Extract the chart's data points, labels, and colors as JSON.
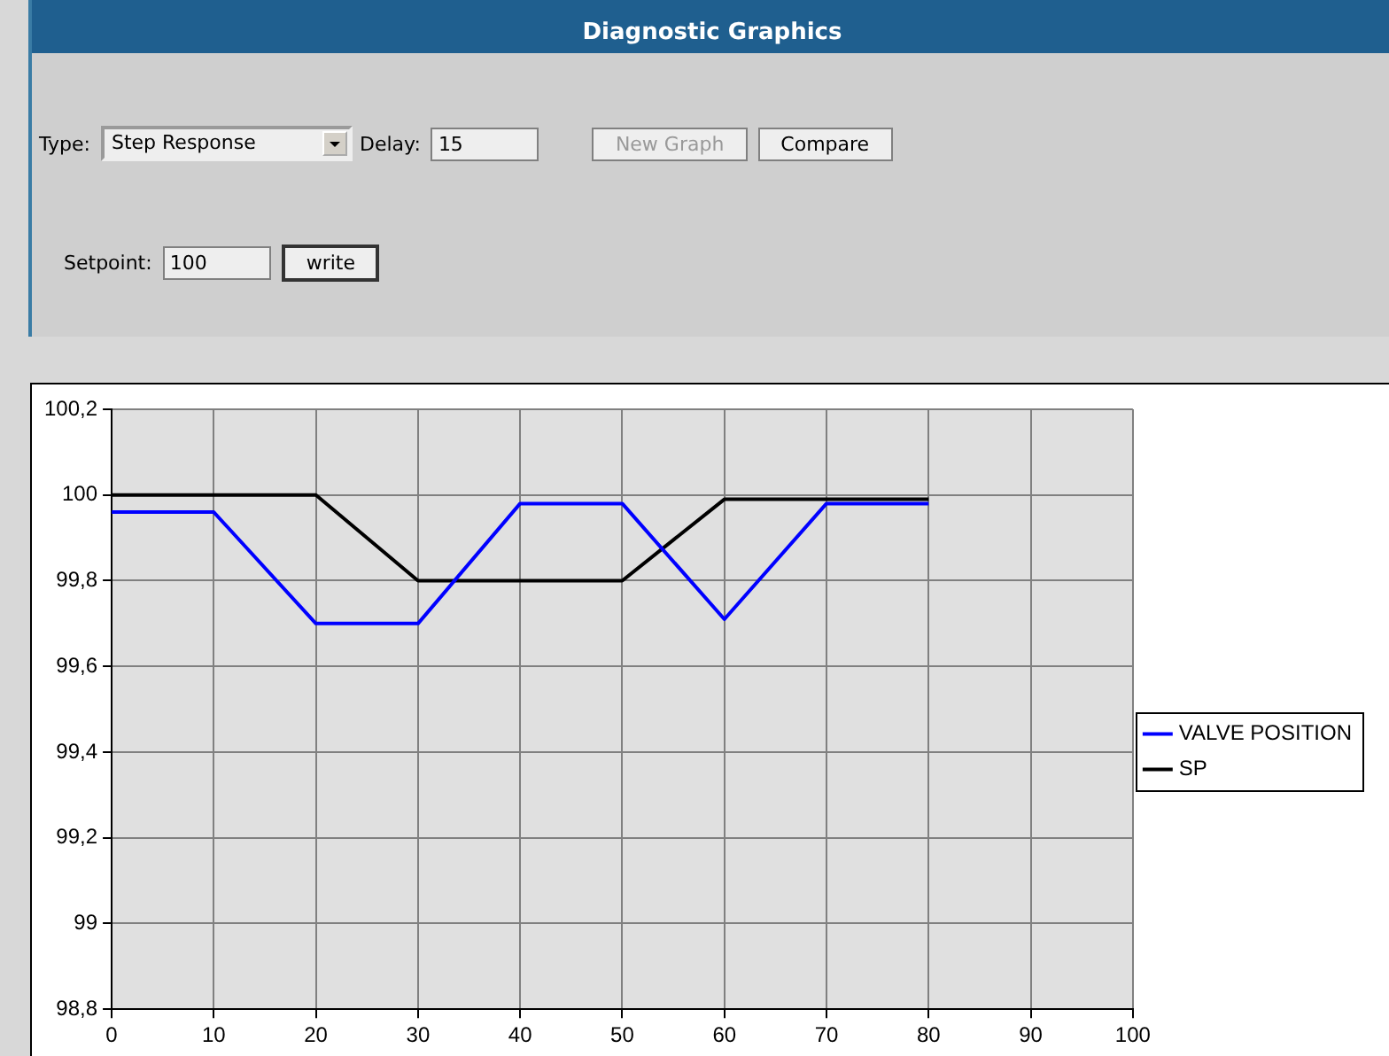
{
  "chart_data": {
    "type": "line",
    "title": "Diagnostic Graphics",
    "annotations": [
      "Type:",
      "Step Response",
      "Delay:",
      "15",
      "New Graph",
      "Compare",
      "Setpoint:",
      "100",
      "write"
    ],
    "x": [
      0,
      10,
      20,
      30,
      40,
      50,
      60,
      70,
      80
    ],
    "series": [
      {
        "name": "VALVE POSITION",
        "color": "#0000ff",
        "values": [
          99.96,
          99.96,
          99.7,
          99.7,
          99.98,
          99.98,
          99.71,
          99.98,
          99.98
        ]
      },
      {
        "name": "SP",
        "color": "#000000",
        "values": [
          100,
          100,
          100,
          99.8,
          99.8,
          99.8,
          99.99,
          99.99,
          99.99
        ]
      }
    ],
    "xlim": [
      0,
      100
    ],
    "xticks": [
      0,
      10,
      20,
      30,
      40,
      50,
      60,
      70,
      80,
      90,
      100
    ],
    "ylim": [
      98.8,
      100.2
    ],
    "yticks": [
      {
        "value": 98.8,
        "label": "98,8"
      },
      {
        "value": 99,
        "label": "99"
      },
      {
        "value": 99.2,
        "label": "99,2"
      },
      {
        "value": 99.4,
        "label": "99,4"
      },
      {
        "value": 99.6,
        "label": "99,6"
      },
      {
        "value": 99.8,
        "label": "99,8"
      },
      {
        "value": 100,
        "label": "100"
      },
      {
        "value": 100.2,
        "label": "100,2"
      }
    ],
    "grid": true,
    "legend": "right",
    "marker": "none",
    "line_style": "solid"
  }
}
